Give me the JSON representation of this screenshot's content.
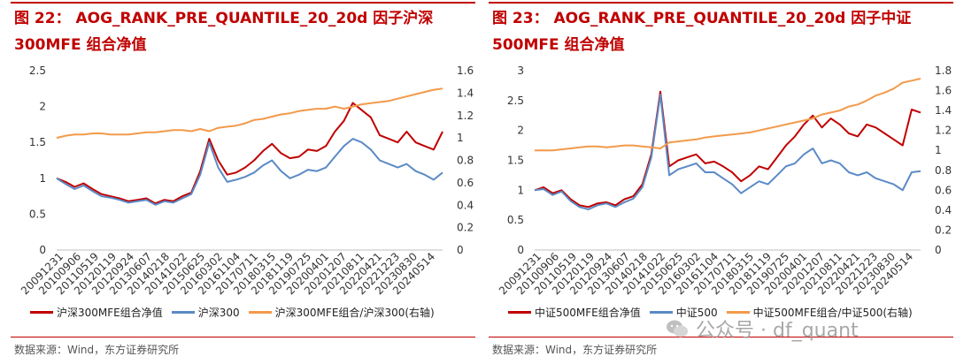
{
  "left": {
    "title_line1": "图 22： AOG_RANK_PRE_QUANTILE_20_20d 因子沪深",
    "title_line2": "300MFE 组合净值",
    "legend": [
      "沪深300MFE组合净值",
      "沪深300",
      "沪深300MFE组合/沪深300(右轴)"
    ],
    "source": "数据来源：Wind，东方证券研究所"
  },
  "right": {
    "title_line1": "图 23： AOG_RANK_PRE_QUANTILE_20_20d 因子中证",
    "title_line2": "500MFE 组合净值",
    "legend": [
      "中证500MFE组合净值",
      "中证500",
      "中证500MFE组合/中证500(右轴)"
    ],
    "source": "数据来源：Wind，东方证券研究所"
  },
  "watermark": "公众号 · df_quant",
  "colors": {
    "portfolio": "#c00000",
    "index": "#5b8ac6",
    "ratio": "#f39a4a",
    "title": "#c00000"
  },
  "chart_data": [
    {
      "type": "line",
      "x_tick_labels": [
        "20091231",
        "20100906",
        "20110519",
        "20120119",
        "20120924",
        "20130607",
        "20140218",
        "20141022",
        "20150625",
        "20160302",
        "20161104",
        "20170711",
        "20180315",
        "20181119",
        "20190725",
        "20200401",
        "20201207",
        "20210811",
        "20220421",
        "20221223",
        "20230830",
        "20240514"
      ],
      "y_left": {
        "ticks": [
          "0",
          "0.5",
          "1",
          "1.5",
          "2",
          "2.5"
        ],
        "range": [
          0,
          2.5
        ]
      },
      "y_right": {
        "ticks": [
          "0",
          "0.2",
          "0.4",
          "0.6",
          "0.8",
          "1",
          "1.2",
          "1.4",
          "1.6"
        ],
        "range": [
          0,
          1.6
        ]
      },
      "series": [
        {
          "name": "沪深300MFE组合净值",
          "axis": "left",
          "values": [
            1.0,
            0.95,
            0.88,
            0.93,
            0.85,
            0.78,
            0.75,
            0.72,
            0.68,
            0.7,
            0.72,
            0.65,
            0.7,
            0.68,
            0.75,
            0.8,
            1.1,
            1.55,
            1.25,
            1.05,
            1.08,
            1.15,
            1.25,
            1.38,
            1.48,
            1.35,
            1.28,
            1.3,
            1.4,
            1.38,
            1.45,
            1.65,
            1.8,
            2.05,
            1.95,
            1.85,
            1.6,
            1.55,
            1.5,
            1.65,
            1.5,
            1.45,
            1.4,
            1.65
          ]
        },
        {
          "name": "沪深300",
          "axis": "left",
          "values": [
            1.0,
            0.92,
            0.85,
            0.9,
            0.82,
            0.75,
            0.73,
            0.7,
            0.66,
            0.68,
            0.7,
            0.63,
            0.68,
            0.66,
            0.72,
            0.78,
            1.05,
            1.5,
            1.15,
            0.95,
            0.98,
            1.02,
            1.08,
            1.18,
            1.25,
            1.1,
            1.0,
            1.05,
            1.12,
            1.1,
            1.15,
            1.3,
            1.45,
            1.55,
            1.5,
            1.4,
            1.25,
            1.2,
            1.15,
            1.2,
            1.1,
            1.05,
            0.98,
            1.08
          ]
        },
        {
          "name": "沪深300MFE组合/沪深300(右轴)",
          "axis": "right",
          "values": [
            1.0,
            1.02,
            1.03,
            1.03,
            1.04,
            1.04,
            1.03,
            1.03,
            1.03,
            1.04,
            1.05,
            1.05,
            1.06,
            1.07,
            1.07,
            1.06,
            1.08,
            1.06,
            1.09,
            1.1,
            1.11,
            1.13,
            1.16,
            1.17,
            1.19,
            1.21,
            1.22,
            1.24,
            1.25,
            1.26,
            1.26,
            1.28,
            1.26,
            1.28,
            1.3,
            1.31,
            1.32,
            1.33,
            1.35,
            1.37,
            1.39,
            1.41,
            1.43,
            1.44
          ]
        }
      ]
    },
    {
      "type": "line",
      "x_tick_labels": [
        "20091231",
        "20100906",
        "20110519",
        "20120119",
        "20120924",
        "20130607",
        "20140218",
        "20141022",
        "20150625",
        "20160302",
        "20161104",
        "20170711",
        "20180315",
        "20181119",
        "20190725",
        "20200401",
        "20201207",
        "20210811",
        "20220421",
        "20221223",
        "20230830",
        "20240514"
      ],
      "y_left": {
        "ticks": [
          "0",
          "0.5",
          "1",
          "1.5",
          "2",
          "2.5",
          "3"
        ],
        "range": [
          0,
          3
        ]
      },
      "y_right": {
        "ticks": [
          "0",
          "0.2",
          "0.4",
          "0.6",
          "0.8",
          "1",
          "1.2",
          "1.4",
          "1.6",
          "1.8"
        ],
        "range": [
          0,
          1.8
        ]
      },
      "series": [
        {
          "name": "中证500MFE组合净值",
          "axis": "left",
          "values": [
            1.0,
            1.05,
            0.95,
            1.0,
            0.85,
            0.75,
            0.72,
            0.78,
            0.8,
            0.75,
            0.85,
            0.9,
            1.1,
            1.6,
            2.65,
            1.4,
            1.5,
            1.55,
            1.6,
            1.45,
            1.48,
            1.4,
            1.3,
            1.15,
            1.25,
            1.4,
            1.35,
            1.55,
            1.75,
            1.9,
            2.1,
            2.25,
            2.05,
            2.2,
            2.1,
            1.95,
            1.9,
            2.1,
            2.05,
            1.95,
            1.85,
            1.75,
            2.35,
            2.3
          ]
        },
        {
          "name": "中证500",
          "axis": "left",
          "values": [
            1.0,
            1.02,
            0.92,
            0.98,
            0.82,
            0.72,
            0.68,
            0.75,
            0.78,
            0.72,
            0.8,
            0.86,
            1.05,
            1.55,
            2.6,
            1.25,
            1.35,
            1.4,
            1.45,
            1.3,
            1.3,
            1.2,
            1.1,
            0.95,
            1.05,
            1.15,
            1.1,
            1.25,
            1.4,
            1.45,
            1.6,
            1.7,
            1.45,
            1.5,
            1.45,
            1.3,
            1.25,
            1.3,
            1.2,
            1.15,
            1.1,
            1.0,
            1.3,
            1.32
          ]
        },
        {
          "name": "中证500MFE组合/中证500(右轴)",
          "axis": "right",
          "values": [
            1.0,
            1.0,
            1.0,
            1.01,
            1.02,
            1.03,
            1.04,
            1.04,
            1.03,
            1.04,
            1.05,
            1.05,
            1.04,
            1.03,
            1.02,
            1.08,
            1.09,
            1.1,
            1.11,
            1.13,
            1.14,
            1.15,
            1.16,
            1.17,
            1.18,
            1.2,
            1.22,
            1.24,
            1.26,
            1.28,
            1.3,
            1.32,
            1.36,
            1.38,
            1.4,
            1.44,
            1.46,
            1.5,
            1.55,
            1.58,
            1.62,
            1.68,
            1.7,
            1.72
          ]
        }
      ]
    }
  ]
}
